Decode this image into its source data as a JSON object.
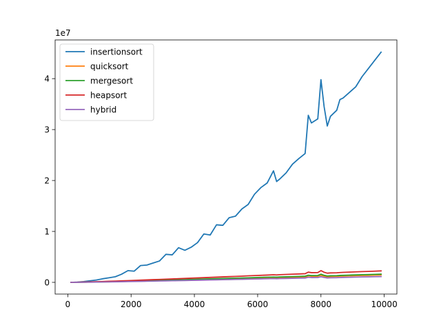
{
  "chart_data": {
    "type": "line",
    "title": "",
    "xlabel": "",
    "ylabel": "",
    "y_offset_label": "1e7",
    "y_scale": 10000000,
    "xlim": [
      -400,
      10400
    ],
    "ylim": [
      -2300000,
      47600000
    ],
    "xticks": [
      0,
      2000,
      4000,
      6000,
      8000,
      10000
    ],
    "xtick_labels": [
      "0",
      "2000",
      "4000",
      "6000",
      "8000",
      "10000"
    ],
    "yticks": [
      0,
      10000000,
      20000000,
      30000000,
      40000000
    ],
    "ytick_labels": [
      "0",
      "1",
      "2",
      "3",
      "4"
    ],
    "grid": false,
    "legend_position": "top-left",
    "x": [
      100,
      300,
      500,
      700,
      900,
      1100,
      1300,
      1500,
      1700,
      1900,
      2100,
      2300,
      2500,
      2700,
      2900,
      3100,
      3300,
      3500,
      3700,
      3900,
      4100,
      4300,
      4500,
      4700,
      4900,
      5100,
      5300,
      5500,
      5700,
      5900,
      6100,
      6300,
      6500,
      6600,
      6700,
      6900,
      7100,
      7300,
      7500,
      7600,
      7700,
      7900,
      8000,
      8100,
      8200,
      8300,
      8500,
      8600,
      8700,
      8900,
      9100,
      9300,
      9500,
      9700,
      9900
    ],
    "series": [
      {
        "name": "insertionsort",
        "color": "#1f77b4",
        "values": [
          0,
          50000,
          150000,
          300000,
          450000,
          700000,
          900000,
          1100000,
          1600000,
          2300000,
          2200000,
          3300000,
          3400000,
          3800000,
          4200000,
          5500000,
          5400000,
          6800000,
          6300000,
          6900000,
          7800000,
          9500000,
          9300000,
          11300000,
          11200000,
          12700000,
          13000000,
          14400000,
          15300000,
          17300000,
          18600000,
          19500000,
          21900000,
          19800000,
          20300000,
          21500000,
          23200000,
          24300000,
          25300000,
          32800000,
          31300000,
          32100000,
          39800000,
          34500000,
          30700000,
          32600000,
          33800000,
          35900000,
          36200000,
          37300000,
          38400000,
          40400000,
          42000000,
          43600000,
          45200000
        ]
      },
      {
        "name": "quicksort",
        "color": "#ff7f0e",
        "values": [
          0,
          10000,
          25000,
          40000,
          60000,
          80000,
          100000,
          130000,
          150000,
          180000,
          210000,
          230000,
          260000,
          290000,
          320000,
          360000,
          380000,
          410000,
          440000,
          470000,
          500000,
          540000,
          560000,
          600000,
          620000,
          660000,
          700000,
          720000,
          760000,
          790000,
          830000,
          860000,
          900000,
          870000,
          900000,
          930000,
          960000,
          1000000,
          1040000,
          1280000,
          1200000,
          1210000,
          1400000,
          1220000,
          1100000,
          1150000,
          1180000,
          1220000,
          1240000,
          1280000,
          1320000,
          1350000,
          1380000,
          1420000,
          1450000
        ]
      },
      {
        "name": "mergesort",
        "color": "#2ca02c",
        "values": [
          0,
          15000,
          35000,
          55000,
          80000,
          110000,
          140000,
          170000,
          200000,
          240000,
          270000,
          300000,
          340000,
          370000,
          400000,
          440000,
          470000,
          500000,
          540000,
          570000,
          610000,
          650000,
          680000,
          720000,
          750000,
          790000,
          830000,
          860000,
          900000,
          940000,
          980000,
          1010000,
          1050000,
          1020000,
          1060000,
          1090000,
          1130000,
          1170000,
          1210000,
          1400000,
          1330000,
          1350000,
          1600000,
          1380000,
          1250000,
          1290000,
          1320000,
          1360000,
          1380000,
          1420000,
          1460000,
          1500000,
          1530000,
          1570000,
          1610000
        ]
      },
      {
        "name": "heapsort",
        "color": "#d62728",
        "values": [
          0,
          30000,
          60000,
          90000,
          130000,
          170000,
          210000,
          250000,
          300000,
          340000,
          390000,
          430000,
          480000,
          530000,
          570000,
          620000,
          670000,
          720000,
          770000,
          820000,
          870000,
          920000,
          970000,
          1020000,
          1070000,
          1120000,
          1170000,
          1220000,
          1280000,
          1330000,
          1380000,
          1430000,
          1490000,
          1450000,
          1500000,
          1550000,
          1600000,
          1650000,
          1700000,
          2000000,
          1900000,
          1920000,
          2300000,
          1980000,
          1800000,
          1850000,
          1880000,
          1930000,
          1960000,
          2010000,
          2060000,
          2110000,
          2150000,
          2200000,
          2250000
        ]
      },
      {
        "name": "hybrid",
        "color": "#9467bd",
        "values": [
          0,
          8000,
          20000,
          35000,
          50000,
          65000,
          85000,
          105000,
          125000,
          150000,
          170000,
          195000,
          215000,
          240000,
          265000,
          290000,
          315000,
          340000,
          365000,
          390000,
          415000,
          445000,
          470000,
          495000,
          520000,
          550000,
          575000,
          600000,
          630000,
          655000,
          685000,
          710000,
          740000,
          715000,
          740000,
          770000,
          795000,
          825000,
          850000,
          1000000,
          940000,
          950000,
          1100000,
          960000,
          870000,
          900000,
          920000,
          950000,
          970000,
          1000000,
          1030000,
          1060000,
          1080000,
          1110000,
          1140000
        ]
      }
    ]
  }
}
